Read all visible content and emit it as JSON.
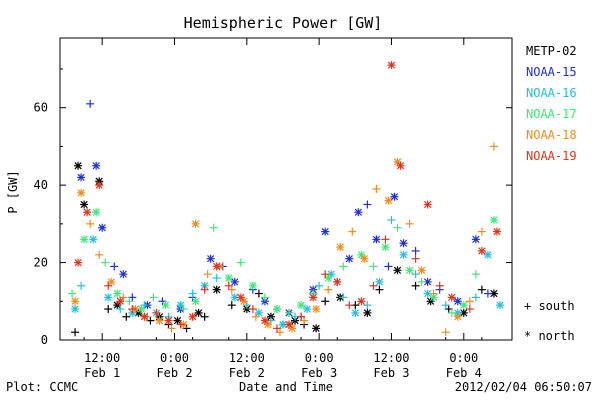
{
  "chart_data": {
    "type": "scatter",
    "title": "Hemispheric Power [GW]",
    "ylabel": "P [GW]",
    "xlabel": "Date and Time",
    "ylim": [
      0,
      78
    ],
    "yticks": [
      0,
      20,
      40,
      60
    ],
    "xlim": [
      -14,
      136
    ],
    "xticks": [
      {
        "x": 0,
        "time": "12:00",
        "date": "Feb 1"
      },
      {
        "x": 24,
        "time": "0:00",
        "date": "Feb 2"
      },
      {
        "x": 48,
        "time": "12:00",
        "date": "Feb 2"
      },
      {
        "x": 72,
        "time": "0:00",
        "date": "Feb 3"
      },
      {
        "x": 96,
        "time": "12:00",
        "date": "Feb 3"
      },
      {
        "x": 120,
        "time": "0:00",
        "date": "Feb 4"
      }
    ],
    "x_units": "hours relative to Feb 1 12:00",
    "marker_legend": [
      {
        "symbol": "+",
        "label": "south"
      },
      {
        "symbol": "*",
        "label": "north"
      }
    ],
    "series": [
      {
        "name": "METP-02",
        "color": "#000000",
        "points": [
          [
            -9,
            2,
            "+"
          ],
          [
            -8,
            45,
            "*"
          ],
          [
            -6,
            35,
            "*"
          ],
          [
            -1,
            41,
            "*"
          ],
          [
            2,
            8,
            "+"
          ],
          [
            5,
            9,
            "*"
          ],
          [
            8,
            6,
            "+"
          ],
          [
            12,
            7,
            "*"
          ],
          [
            16,
            5,
            "+"
          ],
          [
            19,
            6,
            "*"
          ],
          [
            22,
            4,
            "+"
          ],
          [
            25,
            5,
            "*"
          ],
          [
            28,
            3,
            "+"
          ],
          [
            32,
            7,
            "*"
          ],
          [
            34,
            6,
            "+"
          ],
          [
            38,
            13,
            "*"
          ],
          [
            43,
            9,
            "+"
          ],
          [
            48,
            8,
            "*"
          ],
          [
            52,
            12,
            "+"
          ],
          [
            56,
            6,
            "*"
          ],
          [
            60,
            4,
            "+"
          ],
          [
            64,
            5,
            "*"
          ],
          [
            67,
            4,
            "+"
          ],
          [
            71,
            3,
            "*"
          ],
          [
            74,
            10,
            "+"
          ],
          [
            79,
            11,
            "*"
          ],
          [
            84,
            9,
            "+"
          ],
          [
            88,
            7,
            "*"
          ],
          [
            92,
            13,
            "+"
          ],
          [
            98,
            18,
            "*"
          ],
          [
            104,
            14,
            "+"
          ],
          [
            109,
            10,
            "*"
          ],
          [
            115,
            8,
            "+"
          ],
          [
            120,
            7,
            "*"
          ],
          [
            126,
            13,
            "+"
          ],
          [
            130,
            12,
            "*"
          ]
        ]
      },
      {
        "name": "NOAA-15",
        "color": "#1f2fd8",
        "points": [
          [
            -4,
            61,
            "+"
          ],
          [
            -7,
            42,
            "*"
          ],
          [
            -2,
            45,
            "*"
          ],
          [
            0,
            29,
            "*"
          ],
          [
            4,
            19,
            "+"
          ],
          [
            7,
            17,
            "*"
          ],
          [
            10,
            11,
            "+"
          ],
          [
            15,
            9,
            "*"
          ],
          [
            20,
            10,
            "+"
          ],
          [
            26,
            8,
            "*"
          ],
          [
            30,
            11,
            "+"
          ],
          [
            36,
            21,
            "*"
          ],
          [
            40,
            19,
            "+"
          ],
          [
            44,
            15,
            "*"
          ],
          [
            50,
            13,
            "+"
          ],
          [
            54,
            10,
            "*"
          ],
          [
            58,
            8,
            "+"
          ],
          [
            62,
            7,
            "*"
          ],
          [
            66,
            6,
            "+"
          ],
          [
            70,
            13,
            "*"
          ],
          [
            74,
            28,
            "*"
          ],
          [
            78,
            15,
            "+"
          ],
          [
            82,
            21,
            "*"
          ],
          [
            85,
            33,
            "*"
          ],
          [
            88,
            35,
            "+"
          ],
          [
            91,
            26,
            "*"
          ],
          [
            95,
            19,
            "+"
          ],
          [
            97,
            37,
            "*"
          ],
          [
            100,
            25,
            "*"
          ],
          [
            104,
            23,
            "+"
          ],
          [
            108,
            15,
            "*"
          ],
          [
            112,
            13,
            "+"
          ],
          [
            118,
            10,
            "*"
          ],
          [
            124,
            26,
            "*"
          ],
          [
            128,
            12,
            "+"
          ]
        ]
      },
      {
        "name": "NOAA-16",
        "color": "#22c0dc",
        "points": [
          [
            -9,
            8,
            "*"
          ],
          [
            -7,
            14,
            "+"
          ],
          [
            -3,
            26,
            "*"
          ],
          [
            2,
            11,
            "*"
          ],
          [
            6,
            8,
            "+"
          ],
          [
            10,
            7,
            "*"
          ],
          [
            14,
            9,
            "+"
          ],
          [
            18,
            7,
            "*"
          ],
          [
            22,
            6,
            "+"
          ],
          [
            26,
            9,
            "*"
          ],
          [
            30,
            12,
            "+"
          ],
          [
            34,
            14,
            "*"
          ],
          [
            38,
            16,
            "+"
          ],
          [
            44,
            11,
            "*"
          ],
          [
            48,
            9,
            "+"
          ],
          [
            52,
            7,
            "*"
          ],
          [
            56,
            5,
            "+"
          ],
          [
            60,
            4,
            "*"
          ],
          [
            64,
            6,
            "+"
          ],
          [
            68,
            8,
            "*"
          ],
          [
            72,
            14,
            "+"
          ],
          [
            76,
            17,
            "*"
          ],
          [
            80,
            11,
            "+"
          ],
          [
            84,
            7,
            "*"
          ],
          [
            88,
            9,
            "+"
          ],
          [
            92,
            15,
            "*"
          ],
          [
            96,
            31,
            "+"
          ],
          [
            100,
            22,
            "*"
          ],
          [
            104,
            17,
            "+"
          ],
          [
            108,
            12,
            "*"
          ],
          [
            114,
            9,
            "+"
          ],
          [
            118,
            7,
            "*"
          ],
          [
            124,
            11,
            "+"
          ],
          [
            128,
            22,
            "*"
          ],
          [
            132,
            9,
            "*"
          ]
        ]
      },
      {
        "name": "NOAA-17",
        "color": "#3ee878",
        "points": [
          [
            -10,
            12,
            "+"
          ],
          [
            -6,
            26,
            "*"
          ],
          [
            -2,
            33,
            "*"
          ],
          [
            1,
            20,
            "+"
          ],
          [
            5,
            12,
            "*"
          ],
          [
            9,
            10,
            "+"
          ],
          [
            13,
            8,
            "*"
          ],
          [
            17,
            11,
            "+"
          ],
          [
            21,
            9,
            "*"
          ],
          [
            27,
            8,
            "+"
          ],
          [
            31,
            10,
            "*"
          ],
          [
            37,
            29,
            "+"
          ],
          [
            42,
            16,
            "*"
          ],
          [
            46,
            20,
            "+"
          ],
          [
            50,
            14,
            "*"
          ],
          [
            54,
            11,
            "+"
          ],
          [
            58,
            8,
            "*"
          ],
          [
            62,
            7,
            "+"
          ],
          [
            66,
            9,
            "*"
          ],
          [
            70,
            12,
            "+"
          ],
          [
            75,
            16,
            "*"
          ],
          [
            80,
            19,
            "+"
          ],
          [
            86,
            22,
            "*"
          ],
          [
            90,
            19,
            "+"
          ],
          [
            94,
            24,
            "*"
          ],
          [
            98,
            29,
            "+"
          ],
          [
            102,
            18,
            "*"
          ],
          [
            106,
            15,
            "+"
          ],
          [
            110,
            11,
            "*"
          ],
          [
            116,
            7,
            "+"
          ],
          [
            120,
            9,
            "*"
          ],
          [
            124,
            17,
            "+"
          ],
          [
            130,
            31,
            "*"
          ]
        ]
      },
      {
        "name": "NOAA-18",
        "color": "#f08c1c",
        "points": [
          [
            -9,
            10,
            "*"
          ],
          [
            -7,
            38,
            "*"
          ],
          [
            -4,
            30,
            "+"
          ],
          [
            -1,
            22,
            "+"
          ],
          [
            3,
            15,
            "*"
          ],
          [
            7,
            11,
            "+"
          ],
          [
            11,
            8,
            "*"
          ],
          [
            15,
            6,
            "+"
          ],
          [
            19,
            5,
            "*"
          ],
          [
            23,
            3,
            "+"
          ],
          [
            27,
            4,
            "*"
          ],
          [
            31,
            30,
            "*"
          ],
          [
            35,
            17,
            "+"
          ],
          [
            39,
            19,
            "*"
          ],
          [
            43,
            13,
            "+"
          ],
          [
            47,
            10,
            "*"
          ],
          [
            51,
            6,
            "+"
          ],
          [
            55,
            4,
            "*"
          ],
          [
            59,
            2,
            "+"
          ],
          [
            63,
            3,
            "*"
          ],
          [
            67,
            5,
            "+"
          ],
          [
            71,
            8,
            "*"
          ],
          [
            75,
            13,
            "+"
          ],
          [
            79,
            24,
            "*"
          ],
          [
            83,
            28,
            "+"
          ],
          [
            87,
            21,
            "*"
          ],
          [
            91,
            39,
            "+"
          ],
          [
            95,
            36,
            "*"
          ],
          [
            98,
            46,
            "*"
          ],
          [
            102,
            30,
            "+"
          ],
          [
            106,
            18,
            "*"
          ],
          [
            110,
            12,
            "+"
          ],
          [
            114,
            2,
            "+"
          ],
          [
            118,
            6,
            "*"
          ],
          [
            122,
            10,
            "+"
          ],
          [
            126,
            28,
            "+"
          ],
          [
            130,
            50,
            "+"
          ]
        ]
      },
      {
        "name": "NOAA-19",
        "color": "#e0341c",
        "points": [
          [
            -8,
            20,
            "*"
          ],
          [
            -5,
            33,
            "*"
          ],
          [
            -1,
            40,
            "*"
          ],
          [
            2,
            14,
            "+"
          ],
          [
            6,
            10,
            "*"
          ],
          [
            10,
            8,
            "+"
          ],
          [
            14,
            6,
            "*"
          ],
          [
            18,
            7,
            "+"
          ],
          [
            22,
            5,
            "*"
          ],
          [
            26,
            4,
            "+"
          ],
          [
            30,
            6,
            "*"
          ],
          [
            34,
            13,
            "+"
          ],
          [
            38,
            19,
            "*"
          ],
          [
            42,
            14,
            "+"
          ],
          [
            46,
            11,
            "*"
          ],
          [
            50,
            8,
            "+"
          ],
          [
            54,
            5,
            "*"
          ],
          [
            58,
            3,
            "+"
          ],
          [
            62,
            4,
            "*"
          ],
          [
            66,
            6,
            "+"
          ],
          [
            70,
            11,
            "*"
          ],
          [
            74,
            17,
            "+"
          ],
          [
            78,
            15,
            "*"
          ],
          [
            82,
            9,
            "+"
          ],
          [
            86,
            10,
            "*"
          ],
          [
            90,
            14,
            "+"
          ],
          [
            94,
            26,
            "+"
          ],
          [
            96,
            71,
            "*"
          ],
          [
            99,
            45,
            "*"
          ],
          [
            104,
            21,
            "+"
          ],
          [
            108,
            35,
            "*"
          ],
          [
            112,
            14,
            "+"
          ],
          [
            116,
            11,
            "*"
          ],
          [
            122,
            8,
            "+"
          ],
          [
            126,
            23,
            "*"
          ],
          [
            131,
            28,
            "*"
          ]
        ]
      }
    ]
  },
  "footer": {
    "left": "Plot: CCMC",
    "right": "2012/02/04 06:50:07"
  }
}
